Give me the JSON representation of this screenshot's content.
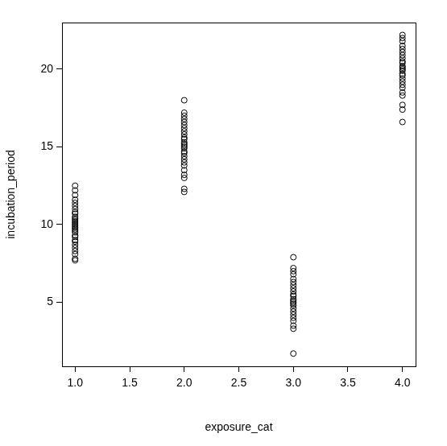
{
  "chart_data": {
    "type": "scatter",
    "x_label": "exposure_cat",
    "y_label": "incubation_period",
    "x": [
      1,
      1,
      1,
      1,
      1,
      1,
      1,
      1,
      1,
      1,
      1,
      1,
      1,
      1,
      1,
      1,
      1,
      1,
      1,
      1,
      1,
      1,
      1,
      1,
      1,
      1,
      1,
      1,
      1,
      1,
      2,
      2,
      2,
      2,
      2,
      2,
      2,
      2,
      2,
      2,
      2,
      2,
      2,
      2,
      2,
      2,
      2,
      2,
      2,
      2,
      2,
      2,
      2,
      2,
      2,
      2,
      2,
      3,
      3,
      3,
      3,
      3,
      3,
      3,
      3,
      3,
      3,
      3,
      3,
      3,
      3,
      3,
      3,
      3,
      3,
      3,
      3,
      3,
      3,
      3,
      3,
      4,
      4,
      4,
      4,
      4,
      4,
      4,
      4,
      4,
      4,
      4,
      4,
      4,
      4,
      4,
      4,
      4,
      4,
      4,
      4,
      4,
      4,
      4,
      4,
      4
    ],
    "values": [
      7.7,
      7.8,
      8.1,
      8.3,
      8.5,
      8.7,
      8.9,
      9.0,
      9.2,
      9.3,
      9.5,
      9.6,
      9.7,
      9.8,
      9.9,
      10.0,
      10.1,
      10.2,
      10.3,
      10.4,
      10.5,
      10.7,
      10.8,
      11.0,
      11.2,
      11.4,
      11.6,
      11.9,
      12.2,
      12.5,
      12.1,
      12.3,
      13.0,
      13.2,
      13.5,
      13.8,
      14.0,
      14.2,
      14.4,
      14.6,
      14.7,
      14.9,
      15.0,
      15.1,
      15.2,
      15.3,
      15.5,
      15.6,
      15.8,
      16.0,
      16.2,
      16.4,
      16.6,
      16.8,
      17.0,
      17.2,
      18.0,
      1.7,
      3.3,
      3.5,
      3.8,
      4.0,
      4.2,
      4.4,
      4.6,
      4.8,
      4.9,
      5.0,
      5.1,
      5.2,
      5.4,
      5.5,
      5.7,
      5.9,
      6.1,
      6.3,
      6.5,
      6.8,
      7.0,
      7.2,
      7.9,
      16.6,
      17.4,
      17.7,
      18.3,
      18.5,
      18.8,
      19.0,
      19.2,
      19.4,
      19.6,
      19.7,
      19.9,
      20.0,
      20.1,
      20.2,
      20.4,
      20.5,
      20.7,
      20.9,
      21.1,
      21.3,
      21.5,
      21.8,
      22.0,
      22.2
    ],
    "color": "#000000",
    "marker": "circle",
    "xlim": [
      0.88,
      4.12
    ],
    "xticks": [
      {
        "value": 1,
        "label": "1.0"
      },
      {
        "value": 1.5,
        "label": "1.5"
      },
      {
        "value": 2,
        "label": "2.0"
      },
      {
        "value": 2.5,
        "label": "2.5"
      },
      {
        "value": 3,
        "label": "3.0"
      },
      {
        "value": 3.5,
        "label": "3.5"
      },
      {
        "value": 4,
        "label": "4.0"
      }
    ],
    "ylim": [
      0.88,
      23.0
    ],
    "yticks": [
      5,
      10,
      15,
      20
    ],
    "grid": false
  }
}
